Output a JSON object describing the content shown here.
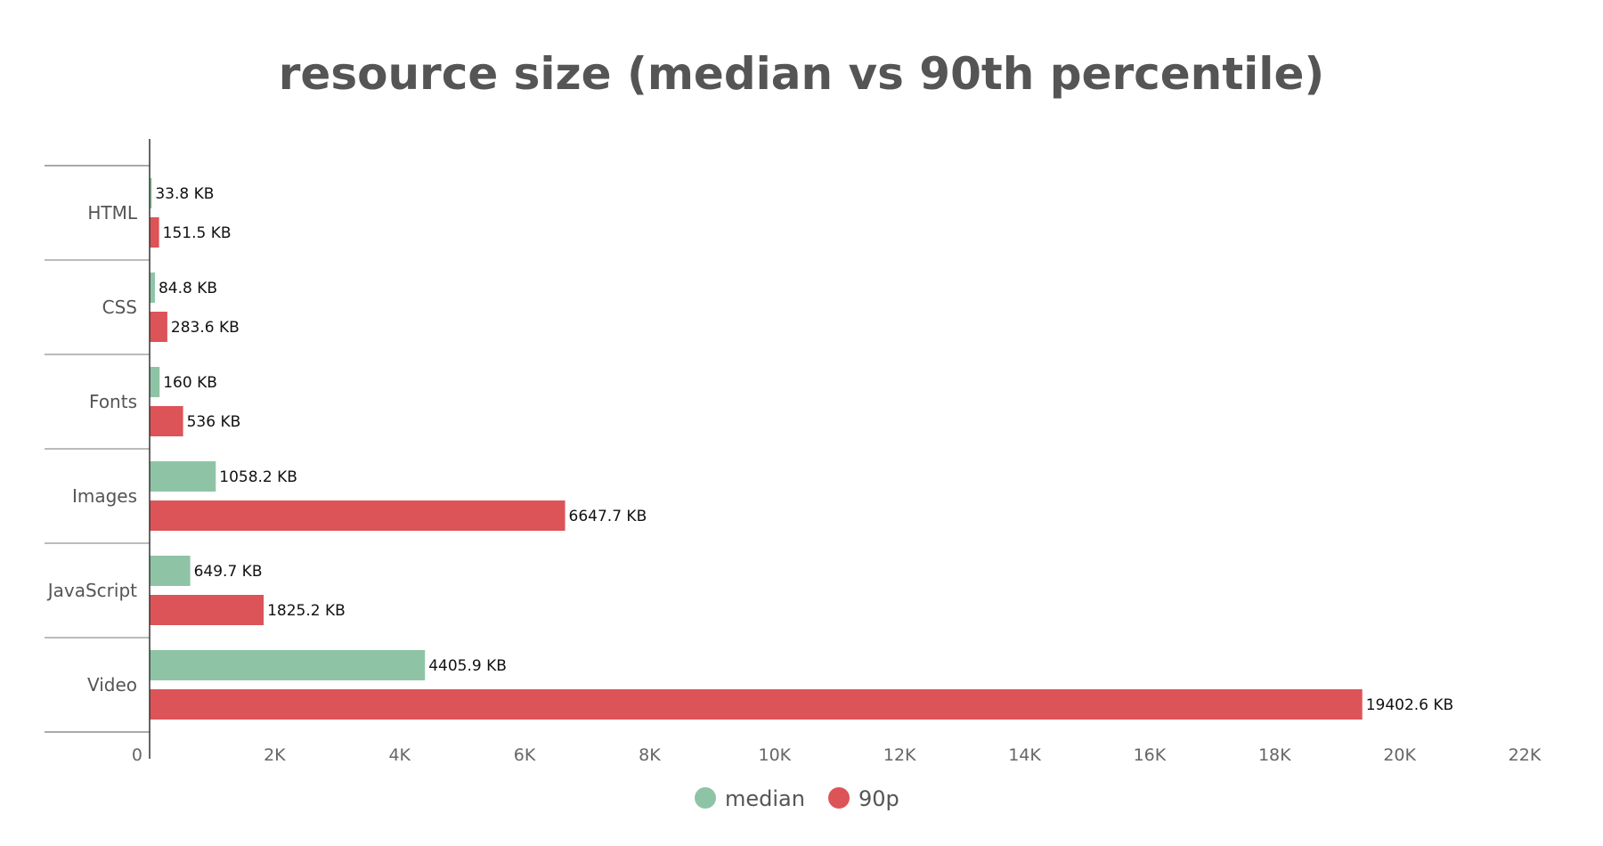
{
  "chart_data": {
    "type": "bar",
    "orientation": "horizontal",
    "title": "resource size (median vs 90th percentile)",
    "xlabel": "",
    "ylabel": "",
    "categories": [
      "HTML",
      "CSS",
      "Fonts",
      "Images",
      "JavaScript",
      "Video"
    ],
    "series": [
      {
        "name": "median",
        "color": "#8ec4a5",
        "values": [
          33.8,
          84.8,
          160,
          1058.2,
          649.7,
          4405.9
        ],
        "labels": [
          "33.8 KB",
          "84.8 KB",
          "160 KB",
          "1058.2 KB",
          "649.7 KB",
          "4405.9 KB"
        ]
      },
      {
        "name": "90p",
        "color": "#dc5458",
        "values": [
          151.5,
          283.6,
          536,
          6647.7,
          1825.2,
          19402.6
        ],
        "labels": [
          "151.5 KB",
          "283.6 KB",
          "536 KB",
          "6647.7 KB",
          "1825.2 KB",
          "19402.6 KB"
        ]
      }
    ],
    "xlim": [
      0,
      22000
    ],
    "x_ticks": [
      0,
      2000,
      4000,
      6000,
      8000,
      10000,
      12000,
      14000,
      16000,
      18000,
      20000,
      22000
    ],
    "x_tick_labels": [
      "0",
      "2K",
      "4K",
      "6K",
      "8K",
      "10K",
      "12K",
      "14K",
      "16K",
      "18K",
      "20K",
      "22K"
    ],
    "grid": false,
    "legend_position": "bottom"
  }
}
